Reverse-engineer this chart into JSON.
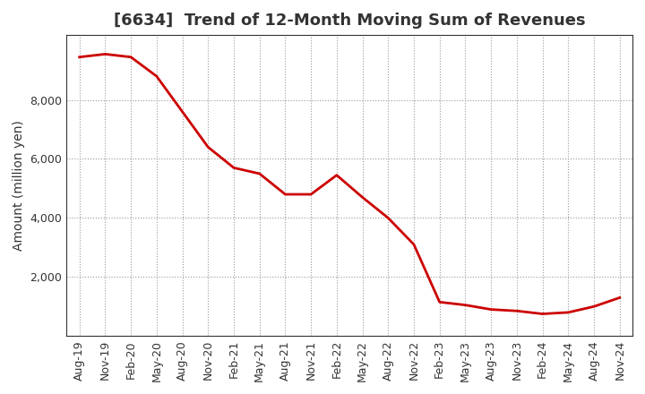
{
  "title": "[6634]  Trend of 12-Month Moving Sum of Revenues",
  "ylabel": "Amount (million yen)",
  "line_color": "#cc0000",
  "background_color": "#ffffff",
  "plot_bg_color": "#ffffff",
  "grid_color": "#999999",
  "x_labels": [
    "Aug-19",
    "Nov-19",
    "Feb-20",
    "May-20",
    "Aug-20",
    "Nov-20",
    "Feb-21",
    "May-21",
    "Aug-21",
    "Nov-21",
    "Feb-22",
    "May-22",
    "Aug-22",
    "Nov-22",
    "Feb-23",
    "May-23",
    "Aug-23",
    "Nov-23",
    "Feb-24",
    "May-24",
    "Aug-24",
    "Nov-24"
  ],
  "values": [
    9450,
    9550,
    9450,
    8800,
    7600,
    6400,
    5700,
    5500,
    4800,
    4800,
    5450,
    4700,
    4000,
    3100,
    1150,
    1050,
    900,
    850,
    750,
    800,
    1000,
    1300
  ],
  "ylim": [
    0,
    10200
  ],
  "yticks": [
    2000,
    4000,
    6000,
    8000
  ],
  "title_fontsize": 13,
  "label_fontsize": 10,
  "tick_fontsize": 9,
  "line_width": 2.0
}
